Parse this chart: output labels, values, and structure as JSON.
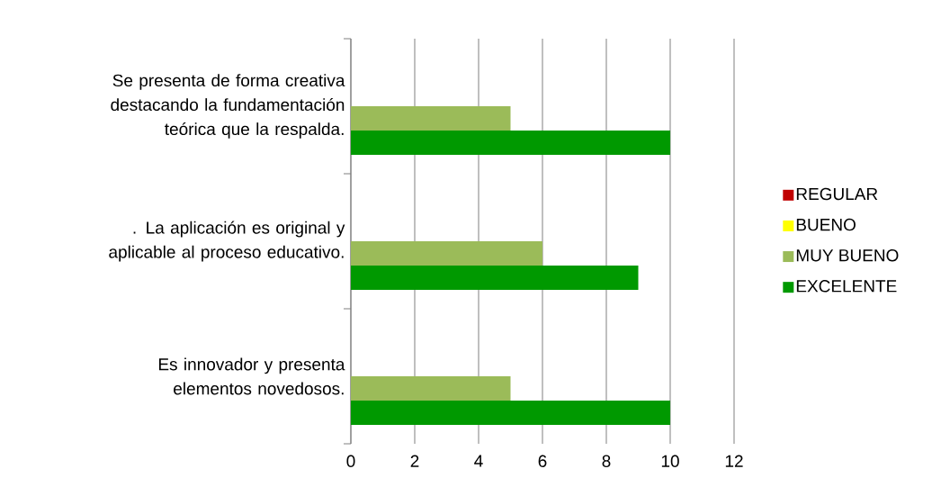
{
  "chart_data": {
    "type": "bar",
    "orientation": "horizontal",
    "categories": [
      "Se presenta de forma creativa destacando la fundamentación teórica que la respalda.",
      ". La aplicación es original y aplicable al proceso educativo.",
      "Es innovador y presenta elementos novedosos."
    ],
    "series": [
      {
        "name": "REGULAR",
        "color": "#c00000",
        "values": [
          null,
          null,
          null
        ]
      },
      {
        "name": "BUENO",
        "color": "#ffff00",
        "values": [
          null,
          null,
          null
        ]
      },
      {
        "name": "MUY BUENO",
        "color": "#9bbb59",
        "values": [
          5,
          6,
          5
        ]
      },
      {
        "name": "EXCELENTE",
        "color": "#009900",
        "values": [
          10,
          9,
          10
        ]
      }
    ],
    "xlim": [
      0,
      12
    ],
    "xticks": [
      0,
      2,
      4,
      6,
      8,
      10,
      12
    ],
    "grid": "x",
    "legend": "right"
  }
}
